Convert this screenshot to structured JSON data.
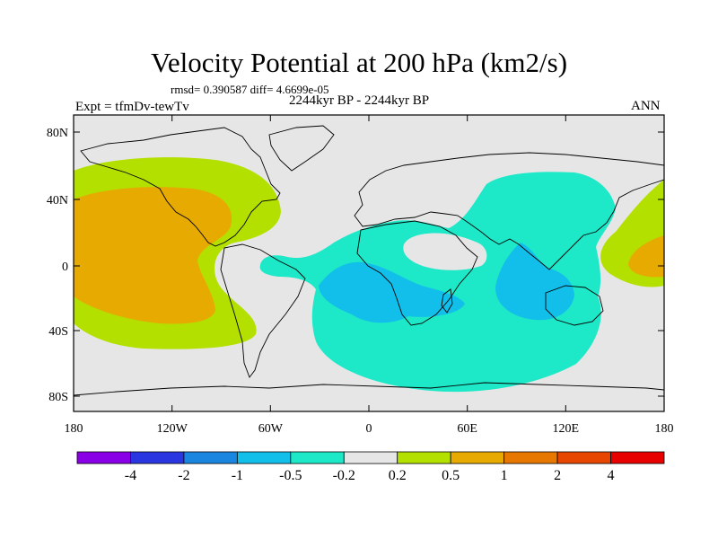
{
  "title": "Velocity Potential at 200 hPa (km2/s)",
  "stats_line": "rmsd= 0.390587 diff= 4.6699e-05",
  "expt_label": "Expt = tfmDv-tewTv",
  "period_label": "2244kyr BP - 2244kyr BP",
  "season_label": "ANN",
  "lat_labels": [
    "80N",
    "40N",
    "0",
    "40S",
    "80S"
  ],
  "lon_labels": [
    "180",
    "120W",
    "60W",
    "0",
    "60E",
    "120E",
    "180"
  ],
  "colorbar": {
    "colors": [
      "#8a00e6",
      "#2a36e0",
      "#1a86e0",
      "#12bfea",
      "#1de8c8",
      "#e6e6e6",
      "#b4e000",
      "#e6aa00",
      "#e67800",
      "#e64600",
      "#e60000"
    ],
    "labels": [
      "-4",
      "-2",
      "-1",
      "-0.5",
      "-0.2",
      "0.2",
      "0.5",
      "1",
      "2",
      "4"
    ]
  },
  "field_colors": {
    "neutral": "#e6e6e6",
    "pos_weak": "#b4e000",
    "pos_mid": "#e6aa00",
    "neg_weak": "#1de8c8",
    "neg_mid": "#12bfea"
  }
}
